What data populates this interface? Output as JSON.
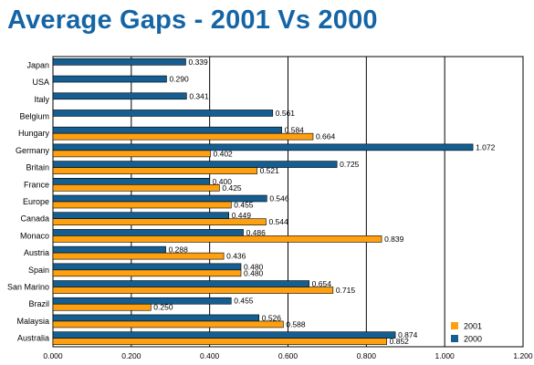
{
  "chart_data": {
    "type": "bar",
    "orientation": "horizontal",
    "title": "Average Gaps - 2001 Vs 2000",
    "xlabel": "",
    "ylabel": "",
    "xlim": [
      0,
      1.2
    ],
    "x_ticks": [
      "0.000",
      "0.200",
      "0.400",
      "0.600",
      "0.800",
      "1.000",
      "1.200"
    ],
    "grid": "vertical",
    "legend_position": "bottom-right",
    "categories": [
      "Japan",
      "USA",
      "Italy",
      "Belgium",
      "Hungary",
      "Germany",
      "Britain",
      "France",
      "Europe",
      "Canada",
      "Monaco",
      "Austria",
      "Spain",
      "San Marino",
      "Brazil",
      "Malaysia",
      "Australia"
    ],
    "series": [
      {
        "name": "2001",
        "color": "#ffa010",
        "values": [
          null,
          null,
          null,
          null,
          0.664,
          0.402,
          0.521,
          0.425,
          0.455,
          0.544,
          0.839,
          0.436,
          0.48,
          0.715,
          0.25,
          0.588,
          0.852
        ],
        "labels": [
          "",
          "",
          "",
          "",
          "0.664",
          "0.402",
          "0.521",
          "0.425",
          "0.455",
          "0.544",
          "0.839",
          "0.436",
          "0.480",
          "0.715",
          "0.250",
          "0.588",
          "0.852"
        ]
      },
      {
        "name": "2000",
        "color": "#145e91",
        "values": [
          0.339,
          0.29,
          0.341,
          0.561,
          0.584,
          1.072,
          0.725,
          0.4,
          0.546,
          0.449,
          0.486,
          0.288,
          0.48,
          0.654,
          0.455,
          0.526,
          0.874
        ],
        "labels": [
          "0.339",
          "0.290",
          "0.341",
          "0.561",
          "0.584",
          "1.072",
          "0.725",
          "0.400",
          "0.546",
          "0.449",
          "0.486",
          "0.288",
          "0.480",
          "0.654",
          "0.455",
          "0.526",
          "0.874"
        ]
      }
    ]
  }
}
